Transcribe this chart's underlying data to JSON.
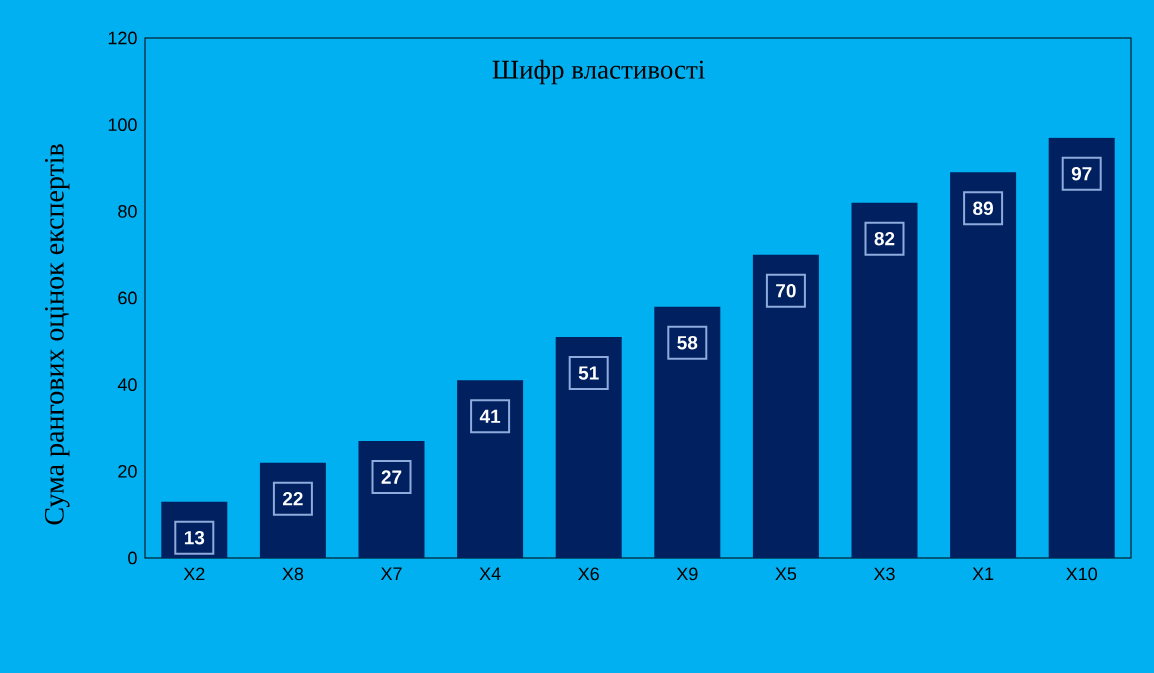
{
  "chart_data": {
    "type": "bar",
    "title": "Шифр властивості",
    "ylabel": "Сума рангових оцінок експертів",
    "categories": [
      "X2",
      "X8",
      "X7",
      "X4",
      "X6",
      "X9",
      "X5",
      "X3",
      "X1",
      "X10"
    ],
    "values": [
      13,
      22,
      27,
      41,
      51,
      58,
      70,
      82,
      89,
      97
    ],
    "color": "#002060",
    "ylim": [
      0,
      120
    ],
    "yticks": [
      0,
      20,
      40,
      60,
      80,
      100,
      120
    ],
    "data_labels": true
  }
}
